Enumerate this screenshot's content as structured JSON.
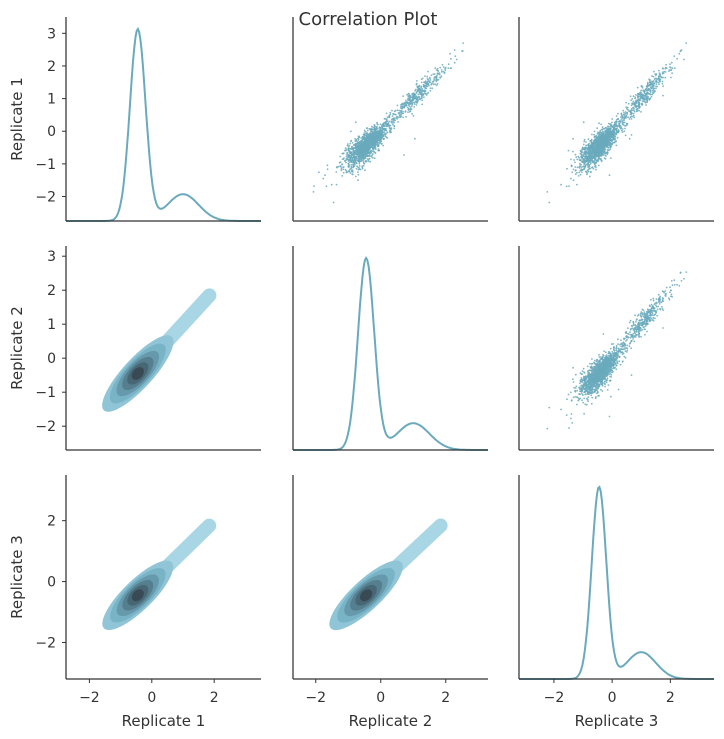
{
  "chart_data": {
    "type": "pairplot",
    "title": "Correlation Plot",
    "variables": [
      "Replicate 1",
      "Replicate 2",
      "Replicate 3"
    ],
    "color": "#6aaabd",
    "dark_color": "#3a4a55",
    "layout": {
      "diagonal": "kde",
      "upper": "scatter",
      "lower": "kde-2d-filled"
    },
    "axis_ranges": {
      "Replicate 1": [
        -2.75,
        3.5
      ],
      "Replicate 2": [
        -2.7,
        3.3
      ],
      "Replicate 3": [
        -3.2,
        3.5
      ]
    },
    "y_ticks": {
      "Replicate 1": [
        -2,
        -1,
        0,
        1,
        2,
        3
      ],
      "Replicate 2": [
        -2,
        -1,
        0,
        1,
        2,
        3
      ],
      "Replicate 3": [
        -2,
        0,
        2
      ]
    },
    "x_ticks": {
      "Replicate 1": [
        -2,
        0,
        2
      ],
      "Replicate 2": [
        -2,
        0,
        2
      ],
      "Replicate 3": [
        -2,
        0,
        2
      ]
    },
    "tick_labels_y": {
      "Replicate 1": [
        "−2",
        "−1",
        "0",
        "1",
        "2",
        "3"
      ],
      "Replicate 2": [
        "−2",
        "−1",
        "0",
        "1",
        "2",
        "3"
      ],
      "Replicate 3": [
        "−2",
        "0",
        "2"
      ]
    },
    "tick_labels_x": {
      "Replicate 1": [
        "−2",
        "0",
        "2"
      ],
      "Replicate 2": [
        "−2",
        "0",
        "2"
      ],
      "Replicate 3": [
        "−2",
        "0",
        "2"
      ]
    },
    "distribution": {
      "mode": -0.45,
      "core_sd": 0.25,
      "tail_center": 1.0,
      "tail_sd": 0.5,
      "tail_weight": 0.28,
      "pair_correlation_noise": 0.12,
      "range": [
        -1.5,
        2.0
      ]
    },
    "grid": false,
    "legend": "none"
  }
}
